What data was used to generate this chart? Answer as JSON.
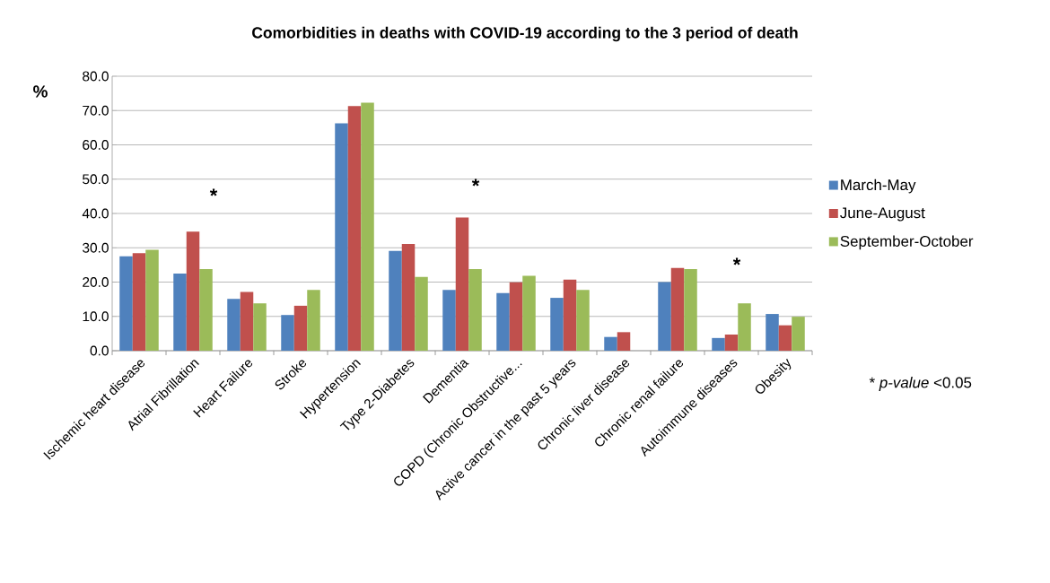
{
  "chart_data": {
    "type": "bar",
    "title": "Comorbidities in deaths with COVID-19 according to the 3 period of death",
    "categories": [
      "Ischemic heart disease",
      "Atrial Fibrillation",
      "Heart Failure",
      "Stroke",
      "Hypertension",
      "Type 2-Diabetes",
      "Dementia",
      "COPD (Chronic Obstructive...",
      "Active cancer in the past 5 years",
      "Chronic liver disease",
      "Chronic renal failure",
      "Autoimmune diseases",
      "Obesity"
    ],
    "series": [
      {
        "name": "March-May",
        "color": "#4f81bd",
        "values": [
          27.5,
          22.5,
          15.1,
          10.4,
          66.3,
          29.1,
          17.7,
          16.8,
          15.4,
          4.0,
          20.0,
          3.7,
          10.7
        ]
      },
      {
        "name": "June-August",
        "color": "#c0504d",
        "values": [
          28.4,
          34.7,
          17.1,
          13.1,
          71.3,
          31.1,
          38.8,
          19.9,
          20.7,
          5.4,
          24.1,
          4.7,
          7.4
        ]
      },
      {
        "name": "September-October",
        "color": "#9bbb59",
        "values": [
          29.4,
          23.8,
          13.8,
          17.7,
          72.3,
          21.5,
          23.8,
          21.8,
          17.7,
          null,
          23.8,
          13.8,
          9.9
        ]
      }
    ],
    "ylim": [
      0,
      80
    ],
    "yticks": [
      {
        "value": 0,
        "label": "0.0"
      },
      {
        "value": 10,
        "label": "10.0"
      },
      {
        "value": 20,
        "label": "20.0"
      },
      {
        "value": 30,
        "label": "30.0"
      },
      {
        "value": 40,
        "label": "40.0"
      },
      {
        "value": 50,
        "label": "50.0"
      },
      {
        "value": 60,
        "label": "60.0"
      },
      {
        "value": 70,
        "label": "70.0"
      },
      {
        "value": 80,
        "label": "80.0"
      }
    ],
    "grid": "y",
    "legend": "right",
    "annotations": [
      "%",
      "*",
      "*",
      "*",
      "* *p-value* <0.05"
    ]
  }
}
